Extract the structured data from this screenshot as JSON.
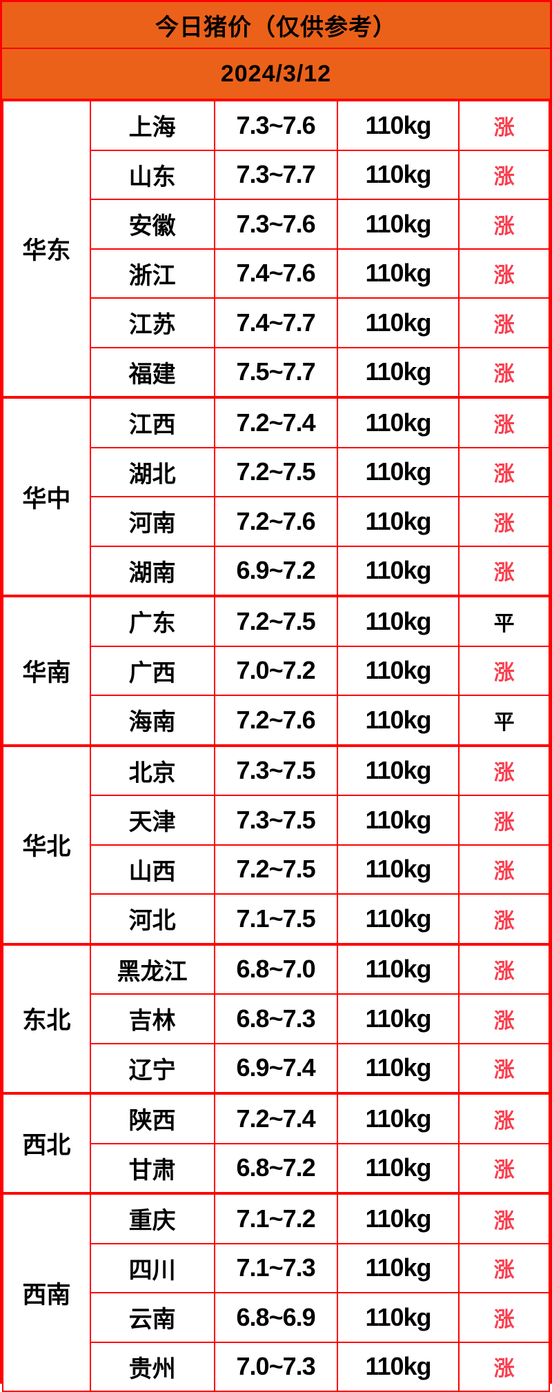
{
  "title": "今日猪价（仅供参考）",
  "date": "2024/3/12",
  "colors": {
    "header_bg": "#eb6119",
    "border": "#ff0000",
    "rise": "#fa3e4e",
    "flat": "#000000",
    "cell_bg": "#ffffff",
    "text": "#000000"
  },
  "regions": [
    {
      "name": "华东",
      "rows": [
        {
          "province": "上海",
          "price": "7.3~7.6",
          "weight": "110kg",
          "trend": "涨"
        },
        {
          "province": "山东",
          "price": "7.3~7.7",
          "weight": "110kg",
          "trend": "涨"
        },
        {
          "province": "安徽",
          "price": "7.3~7.6",
          "weight": "110kg",
          "trend": "涨"
        },
        {
          "province": "浙江",
          "price": "7.4~7.6",
          "weight": "110kg",
          "trend": "涨"
        },
        {
          "province": "江苏",
          "price": "7.4~7.7",
          "weight": "110kg",
          "trend": "涨"
        },
        {
          "province": "福建",
          "price": "7.5~7.7",
          "weight": "110kg",
          "trend": "涨"
        }
      ]
    },
    {
      "name": "华中",
      "rows": [
        {
          "province": "江西",
          "price": "7.2~7.4",
          "weight": "110kg",
          "trend": "涨"
        },
        {
          "province": "湖北",
          "price": "7.2~7.5",
          "weight": "110kg",
          "trend": "涨"
        },
        {
          "province": "河南",
          "price": "7.2~7.6",
          "weight": "110kg",
          "trend": "涨"
        },
        {
          "province": "湖南",
          "price": "6.9~7.2",
          "weight": "110kg",
          "trend": "涨"
        }
      ]
    },
    {
      "name": "华南",
      "rows": [
        {
          "province": "广东",
          "price": "7.2~7.5",
          "weight": "110kg",
          "trend": "平"
        },
        {
          "province": "广西",
          "price": "7.0~7.2",
          "weight": "110kg",
          "trend": "涨"
        },
        {
          "province": "海南",
          "price": "7.2~7.6",
          "weight": "110kg",
          "trend": "平"
        }
      ]
    },
    {
      "name": "华北",
      "rows": [
        {
          "province": "北京",
          "price": "7.3~7.5",
          "weight": "110kg",
          "trend": "涨"
        },
        {
          "province": "天津",
          "price": "7.3~7.5",
          "weight": "110kg",
          "trend": "涨"
        },
        {
          "province": "山西",
          "price": "7.2~7.5",
          "weight": "110kg",
          "trend": "涨"
        },
        {
          "province": "河北",
          "price": "7.1~7.5",
          "weight": "110kg",
          "trend": "涨"
        }
      ]
    },
    {
      "name": "东北",
      "rows": [
        {
          "province": "黑龙江",
          "price": "6.8~7.0",
          "weight": "110kg",
          "trend": "涨"
        },
        {
          "province": "吉林",
          "price": "6.8~7.3",
          "weight": "110kg",
          "trend": "涨"
        },
        {
          "province": "辽宁",
          "price": "6.9~7.4",
          "weight": "110kg",
          "trend": "涨"
        }
      ]
    },
    {
      "name": "西北",
      "rows": [
        {
          "province": "陕西",
          "price": "7.2~7.4",
          "weight": "110kg",
          "trend": "涨"
        },
        {
          "province": "甘肃",
          "price": "6.8~7.2",
          "weight": "110kg",
          "trend": "涨"
        }
      ]
    },
    {
      "name": "西南",
      "rows": [
        {
          "province": "重庆",
          "price": "7.1~7.2",
          "weight": "110kg",
          "trend": "涨"
        },
        {
          "province": "四川",
          "price": "7.1~7.3",
          "weight": "110kg",
          "trend": "涨"
        },
        {
          "province": "云南",
          "price": "6.8~6.9",
          "weight": "110kg",
          "trend": "涨"
        },
        {
          "province": "贵州",
          "price": "7.0~7.3",
          "weight": "110kg",
          "trend": "涨"
        }
      ]
    }
  ],
  "chart_data": {
    "type": "table",
    "title": "今日猪价（仅供参考）",
    "date": "2024/3/12",
    "columns": [
      "region",
      "province",
      "price_range",
      "weight",
      "trend"
    ],
    "rows": [
      [
        "华东",
        "上海",
        "7.3~7.6",
        "110kg",
        "涨"
      ],
      [
        "华东",
        "山东",
        "7.3~7.7",
        "110kg",
        "涨"
      ],
      [
        "华东",
        "安徽",
        "7.3~7.6",
        "110kg",
        "涨"
      ],
      [
        "华东",
        "浙江",
        "7.4~7.6",
        "110kg",
        "涨"
      ],
      [
        "华东",
        "江苏",
        "7.4~7.7",
        "110kg",
        "涨"
      ],
      [
        "华东",
        "福建",
        "7.5~7.7",
        "110kg",
        "涨"
      ],
      [
        "华中",
        "江西",
        "7.2~7.4",
        "110kg",
        "涨"
      ],
      [
        "华中",
        "湖北",
        "7.2~7.5",
        "110kg",
        "涨"
      ],
      [
        "华中",
        "河南",
        "7.2~7.6",
        "110kg",
        "涨"
      ],
      [
        "华中",
        "湖南",
        "6.9~7.2",
        "110kg",
        "涨"
      ],
      [
        "华南",
        "广东",
        "7.2~7.5",
        "110kg",
        "平"
      ],
      [
        "华南",
        "广西",
        "7.0~7.2",
        "110kg",
        "涨"
      ],
      [
        "华南",
        "海南",
        "7.2~7.6",
        "110kg",
        "平"
      ],
      [
        "华北",
        "北京",
        "7.3~7.5",
        "110kg",
        "涨"
      ],
      [
        "华北",
        "天津",
        "7.3~7.5",
        "110kg",
        "涨"
      ],
      [
        "华北",
        "山西",
        "7.2~7.5",
        "110kg",
        "涨"
      ],
      [
        "华北",
        "河北",
        "7.1~7.5",
        "110kg",
        "涨"
      ],
      [
        "东北",
        "黑龙江",
        "6.8~7.0",
        "110kg",
        "涨"
      ],
      [
        "东北",
        "吉林",
        "6.8~7.3",
        "110kg",
        "涨"
      ],
      [
        "东北",
        "辽宁",
        "6.9~7.4",
        "110kg",
        "涨"
      ],
      [
        "西北",
        "陕西",
        "7.2~7.4",
        "110kg",
        "涨"
      ],
      [
        "西北",
        "甘肃",
        "6.8~7.2",
        "110kg",
        "涨"
      ],
      [
        "西南",
        "重庆",
        "7.1~7.2",
        "110kg",
        "涨"
      ],
      [
        "西南",
        "四川",
        "7.1~7.3",
        "110kg",
        "涨"
      ],
      [
        "西南",
        "云南",
        "6.8~6.9",
        "110kg",
        "涨"
      ],
      [
        "西南",
        "贵州",
        "7.0~7.3",
        "110kg",
        "涨"
      ]
    ]
  }
}
